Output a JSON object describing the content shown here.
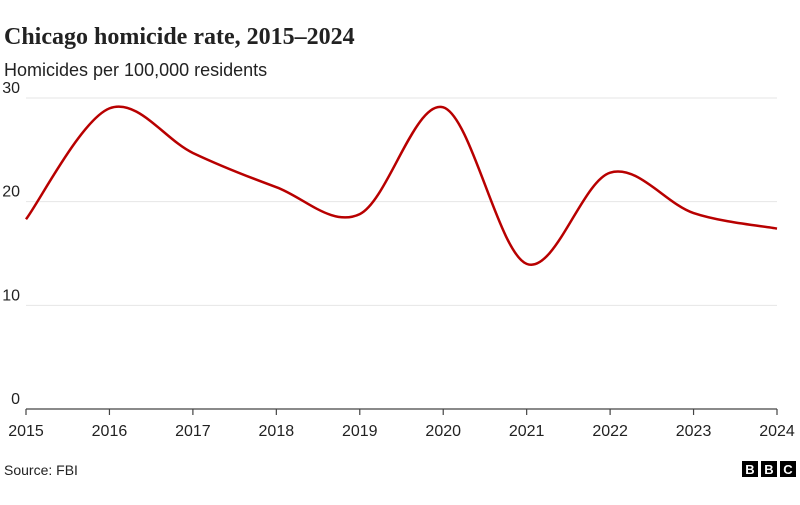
{
  "chart_data": {
    "type": "line",
    "title": "Chicago homicide rate, 2015–2024",
    "subtitle": "Homicides per 100,000 residents",
    "x": [
      2015,
      2016,
      2017,
      2018,
      2019,
      2020,
      2021,
      2022,
      2023,
      2024
    ],
    "series": [
      {
        "name": "Homicide rate",
        "color": "#b80000",
        "values": [
          18.3,
          29.0,
          24.7,
          21.4,
          18.8,
          29.1,
          14.0,
          22.8,
          18.9,
          17.4
        ]
      }
    ],
    "xlim": [
      2015,
      2024
    ],
    "xticks": [
      2015,
      2016,
      2017,
      2018,
      2019,
      2020,
      2021,
      2022,
      2023,
      2024
    ],
    "ylim": [
      0,
      30
    ],
    "yticks": [
      0,
      10,
      20,
      30
    ],
    "grid": true,
    "smooth": true,
    "source": "Source: FBI",
    "logo": [
      "B",
      "B",
      "C"
    ]
  }
}
